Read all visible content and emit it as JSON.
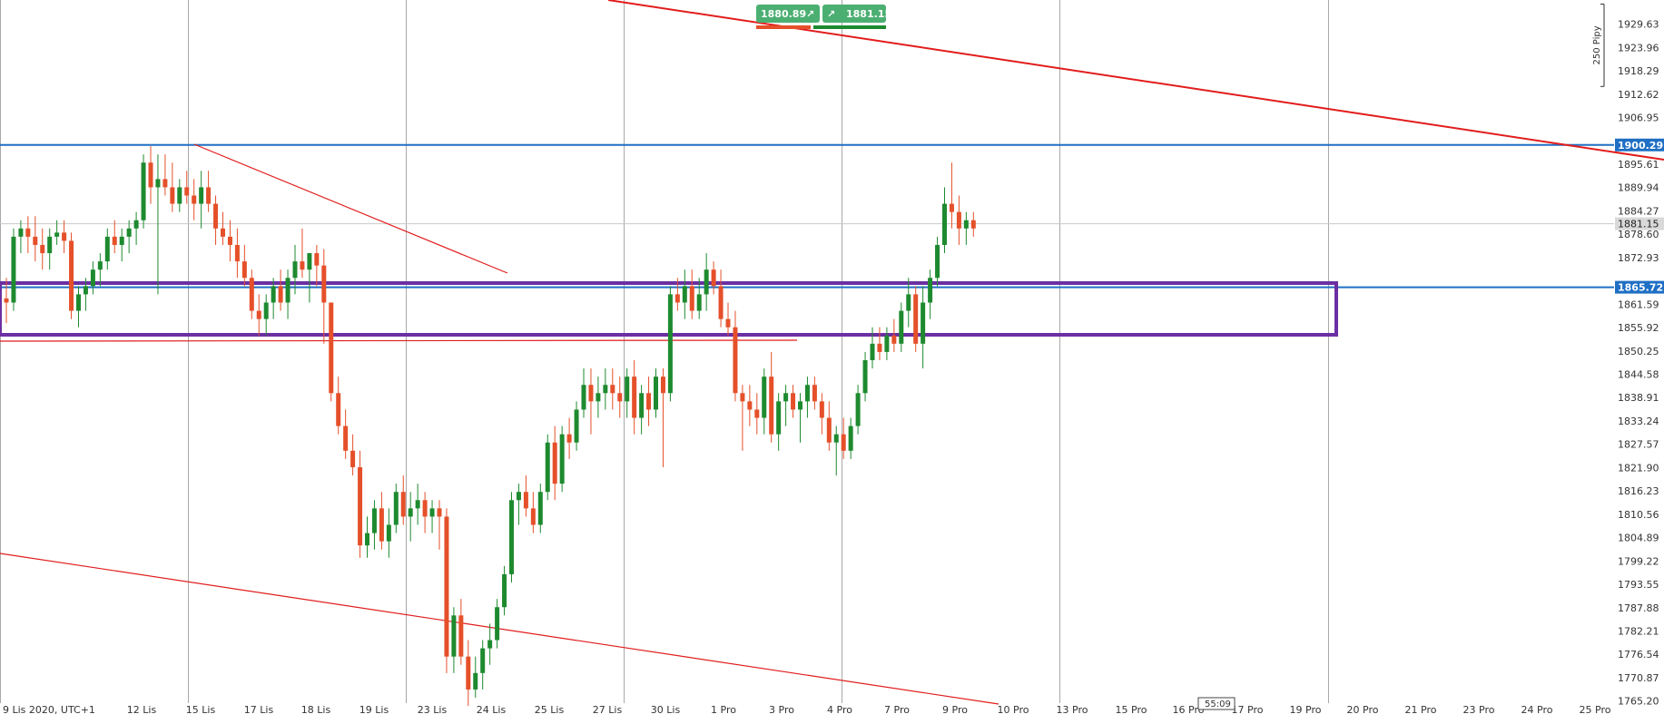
{
  "chart_data": {
    "type": "candlestick",
    "xlabel": "",
    "ylabel": "",
    "ylim": [
      1760.5,
      1935.5
    ],
    "price_ticks": [
      "1929.63",
      "1923.96",
      "1918.29",
      "1912.62",
      "1906.95",
      "1895.61",
      "1889.94",
      "1884.27",
      "1878.60",
      "1872.93",
      "1861.59",
      "1855.92",
      "1850.25",
      "1844.58",
      "1838.91",
      "1833.24",
      "1827.57",
      "1821.90",
      "1816.23",
      "1810.56",
      "1804.89",
      "1799.22",
      "1793.55",
      "1787.88",
      "1782.21",
      "1776.54",
      "1770.87",
      "1765.20"
    ],
    "date_ticks": [
      "9 Lis 2020, UTC+1",
      "12 Lis",
      "15 Lis",
      "17 Lis",
      "18 Lis",
      "19 Lis",
      "23 Lis",
      "24 Lis",
      "25 Lis",
      "27 Lis",
      "30 Lis",
      "1 Pro",
      "3 Pro",
      "4 Pro",
      "7 Pro",
      "9 Pro",
      "10 Pro",
      "13 Pro",
      "15 Pro",
      "16 Pro",
      "17 Pro",
      "19 Pro",
      "20 Pro",
      "21 Pro",
      "23 Pro",
      "24 Pro",
      "25 Pro"
    ],
    "level_labels": [
      {
        "text": "1900.29",
        "value": 1900.29
      },
      {
        "text": "1865.72",
        "value": 1865.72
      },
      {
        "text": "1881.15",
        "value": 1881.15
      }
    ],
    "range_ruler_label": "250 Pipy",
    "sell_price": "1880.89",
    "buy_price": "1881.15",
    "candle_timer": "55:09",
    "colors": {
      "up": "#1e8a2f",
      "down": "#e5502a",
      "level_line": "#1f6fc4",
      "trend_line": "#e21c1c",
      "zone": "#6b2fa3",
      "badge": "#4caf72"
    },
    "candles": [
      [
        1863.0,
        1868.0,
        1857.0,
        1862.0
      ],
      [
        1862.0,
        1880.0,
        1860.0,
        1878.0
      ],
      [
        1878.0,
        1882.0,
        1874.0,
        1880.0
      ],
      [
        1880.0,
        1883.0,
        1874.0,
        1878.0
      ],
      [
        1878.0,
        1883.0,
        1872.0,
        1876.0
      ],
      [
        1876.0,
        1880.0,
        1870.0,
        1874.0
      ],
      [
        1874.0,
        1880.0,
        1870.0,
        1878.0
      ],
      [
        1878.0,
        1882.0,
        1876.0,
        1879.0
      ],
      [
        1879.0,
        1882.0,
        1874.0,
        1877.0
      ],
      [
        1877.0,
        1879.0,
        1858.0,
        1860.0
      ],
      [
        1860.0,
        1866.0,
        1856.0,
        1864.0
      ],
      [
        1864.0,
        1868.0,
        1860.0,
        1866.0
      ],
      [
        1866.0,
        1872.0,
        1864.0,
        1870.0
      ],
      [
        1870.0,
        1874.0,
        1866.0,
        1872.0
      ],
      [
        1872.0,
        1880.0,
        1870.0,
        1878.0
      ],
      [
        1878.0,
        1882.0,
        1874.0,
        1876.0
      ],
      [
        1876.0,
        1880.0,
        1872.0,
        1878.0
      ],
      [
        1878.0,
        1882.0,
        1874.0,
        1880.0
      ],
      [
        1880.0,
        1884.0,
        1876.0,
        1882.0
      ],
      [
        1882.0,
        1898.0,
        1880.0,
        1896.0
      ],
      [
        1896.0,
        1900.0,
        1886.0,
        1890.0
      ],
      [
        1890.0,
        1898.0,
        1864.0,
        1892.0
      ],
      [
        1892.0,
        1898.0,
        1888.0,
        1890.0
      ],
      [
        1890.0,
        1896.0,
        1884.0,
        1886.0
      ],
      [
        1886.0,
        1892.0,
        1884.0,
        1890.0
      ],
      [
        1890.0,
        1894.0,
        1886.0,
        1888.0
      ],
      [
        1888.0,
        1892.0,
        1882.0,
        1886.0
      ],
      [
        1886.0,
        1894.0,
        1880.0,
        1890.0
      ],
      [
        1890.0,
        1894.0,
        1884.0,
        1886.0
      ],
      [
        1886.0,
        1888.0,
        1876.0,
        1880.0
      ],
      [
        1880.0,
        1884.0,
        1876.0,
        1878.0
      ],
      [
        1878.0,
        1882.0,
        1872.0,
        1876.0
      ],
      [
        1876.0,
        1880.0,
        1868.0,
        1872.0
      ],
      [
        1872.0,
        1876.0,
        1866.0,
        1868.0
      ],
      [
        1868.0,
        1870.0,
        1858.0,
        1860.0
      ],
      [
        1860.0,
        1864.0,
        1854.0,
        1858.0
      ],
      [
        1858.0,
        1864.0,
        1854.0,
        1862.0
      ],
      [
        1862.0,
        1868.0,
        1858.0,
        1866.0
      ],
      [
        1866.0,
        1870.0,
        1860.0,
        1862.0
      ],
      [
        1862.0,
        1870.0,
        1858.0,
        1868.0
      ],
      [
        1868.0,
        1876.0,
        1864.0,
        1872.0
      ],
      [
        1872.0,
        1880.0,
        1868.0,
        1870.0
      ],
      [
        1870.0,
        1874.0,
        1862.0,
        1874.0
      ],
      [
        1874.0,
        1876.0,
        1866.0,
        1871.0
      ],
      [
        1871.0,
        1875.0,
        1852.0,
        1862.0
      ],
      [
        1862.0,
        1862.0,
        1838.0,
        1840.0
      ],
      [
        1840.0,
        1844.0,
        1830.0,
        1832.0
      ],
      [
        1832.0,
        1836.0,
        1824.0,
        1826.0
      ],
      [
        1826.0,
        1830.0,
        1820.0,
        1822.0
      ],
      [
        1822.0,
        1826.0,
        1800.0,
        1803.0
      ],
      [
        1803.0,
        1810.0,
        1800.0,
        1806.0
      ],
      [
        1806.0,
        1814.0,
        1802.0,
        1812.0
      ],
      [
        1812.0,
        1816.0,
        1802.0,
        1804.0
      ],
      [
        1804.0,
        1812.0,
        1800.0,
        1808.0
      ],
      [
        1808.0,
        1818.0,
        1806.0,
        1816.0
      ],
      [
        1816.0,
        1820.0,
        1808.0,
        1810.0
      ],
      [
        1810.0,
        1816.0,
        1804.0,
        1812.0
      ],
      [
        1812.0,
        1818.0,
        1808.0,
        1814.0
      ],
      [
        1814.0,
        1816.0,
        1806.0,
        1810.0
      ],
      [
        1810.0,
        1814.0,
        1806.0,
        1812.0
      ],
      [
        1812.0,
        1814.0,
        1802.0,
        1810.0
      ],
      [
        1810.0,
        1812.0,
        1772.0,
        1776.0
      ],
      [
        1776.0,
        1788.0,
        1772.0,
        1786.0
      ],
      [
        1786.0,
        1790.0,
        1774.0,
        1776.0
      ],
      [
        1776.0,
        1780.0,
        1764.0,
        1768.0
      ],
      [
        1768.0,
        1776.0,
        1766.0,
        1772.0
      ],
      [
        1772.0,
        1780.0,
        1768.0,
        1778.0
      ],
      [
        1778.0,
        1784.0,
        1774.0,
        1780.0
      ],
      [
        1780.0,
        1790.0,
        1778.0,
        1788.0
      ],
      [
        1788.0,
        1798.0,
        1786.0,
        1796.0
      ],
      [
        1796.0,
        1816.0,
        1794.0,
        1814.0
      ],
      [
        1814.0,
        1818.0,
        1808.0,
        1816.0
      ],
      [
        1816.0,
        1820.0,
        1810.0,
        1812.0
      ],
      [
        1812.0,
        1816.0,
        1806.0,
        1808.0
      ],
      [
        1808.0,
        1818.0,
        1806.0,
        1816.0
      ],
      [
        1816.0,
        1830.0,
        1814.0,
        1828.0
      ],
      [
        1828.0,
        1832.0,
        1814.0,
        1818.0
      ],
      [
        1818.0,
        1832.0,
        1816.0,
        1830.0
      ],
      [
        1830.0,
        1834.0,
        1824.0,
        1828.0
      ],
      [
        1828.0,
        1838.0,
        1826.0,
        1836.0
      ],
      [
        1836.0,
        1846.0,
        1834.0,
        1842.0
      ],
      [
        1842.0,
        1846.0,
        1830.0,
        1838.0
      ],
      [
        1838.0,
        1844.0,
        1834.0,
        1840.0
      ],
      [
        1840.0,
        1846.0,
        1836.0,
        1842.0
      ],
      [
        1842.0,
        1846.0,
        1836.0,
        1840.0
      ],
      [
        1840.0,
        1844.0,
        1834.0,
        1838.0
      ],
      [
        1838.0,
        1846.0,
        1834.0,
        1844.0
      ],
      [
        1844.0,
        1848.0,
        1830.0,
        1834.0
      ],
      [
        1834.0,
        1842.0,
        1830.0,
        1840.0
      ],
      [
        1840.0,
        1844.0,
        1832.0,
        1836.0
      ],
      [
        1836.0,
        1846.0,
        1834.0,
        1844.0
      ],
      [
        1844.0,
        1846.0,
        1822.0,
        1840.0
      ],
      [
        1840.0,
        1866.0,
        1838.0,
        1864.0
      ],
      [
        1864.0,
        1868.0,
        1860.0,
        1862.0
      ],
      [
        1862.0,
        1870.0,
        1858.0,
        1866.0
      ],
      [
        1866.0,
        1870.0,
        1858.0,
        1860.0
      ],
      [
        1860.0,
        1868.0,
        1858.0,
        1864.0
      ],
      [
        1864.0,
        1874.0,
        1860.0,
        1870.0
      ],
      [
        1870.0,
        1872.0,
        1864.0,
        1866.0
      ],
      [
        1866.0,
        1870.0,
        1856.0,
        1858.0
      ],
      [
        1858.0,
        1862.0,
        1854.0,
        1856.0
      ],
      [
        1856.0,
        1860.0,
        1838.0,
        1840.0
      ],
      [
        1840.0,
        1842.0,
        1826.0,
        1838.0
      ],
      [
        1838.0,
        1842.0,
        1832.0,
        1836.0
      ],
      [
        1836.0,
        1840.0,
        1830.0,
        1834.0
      ],
      [
        1834.0,
        1846.0,
        1830.0,
        1844.0
      ],
      [
        1844.0,
        1850.0,
        1828.0,
        1830.0
      ],
      [
        1830.0,
        1840.0,
        1826.0,
        1838.0
      ],
      [
        1838.0,
        1842.0,
        1832.0,
        1840.0
      ],
      [
        1840.0,
        1842.0,
        1834.0,
        1836.0
      ],
      [
        1836.0,
        1840.0,
        1828.0,
        1838.0
      ],
      [
        1838.0,
        1844.0,
        1834.0,
        1842.0
      ],
      [
        1842.0,
        1844.0,
        1836.0,
        1838.0
      ],
      [
        1838.0,
        1840.0,
        1830.0,
        1834.0
      ],
      [
        1834.0,
        1838.0,
        1826.0,
        1828.0
      ],
      [
        1828.0,
        1832.0,
        1820.0,
        1830.0
      ],
      [
        1830.0,
        1834.0,
        1824.0,
        1826.0
      ],
      [
        1826.0,
        1834.0,
        1824.0,
        1832.0
      ],
      [
        1832.0,
        1842.0,
        1830.0,
        1840.0
      ],
      [
        1840.0,
        1850.0,
        1838.0,
        1848.0
      ],
      [
        1848.0,
        1856.0,
        1846.0,
        1852.0
      ],
      [
        1852.0,
        1856.0,
        1848.0,
        1850.0
      ],
      [
        1850.0,
        1856.0,
        1848.0,
        1854.0
      ],
      [
        1854.0,
        1858.0,
        1850.0,
        1852.0
      ],
      [
        1852.0,
        1862.0,
        1850.0,
        1860.0
      ],
      [
        1860.0,
        1868.0,
        1856.0,
        1864.0
      ],
      [
        1864.0,
        1866.0,
        1850.0,
        1852.0
      ],
      [
        1852.0,
        1866.0,
        1846.0,
        1862.0
      ],
      [
        1862.0,
        1870.0,
        1858.0,
        1868.0
      ],
      [
        1868.0,
        1878.0,
        1866.0,
        1876.0
      ],
      [
        1876.0,
        1890.0,
        1874.0,
        1886.0
      ],
      [
        1886.0,
        1896.0,
        1880.0,
        1884.0
      ],
      [
        1884.0,
        1888.0,
        1876.0,
        1880.0
      ],
      [
        1880.0,
        1884.0,
        1876.0,
        1882.0
      ],
      [
        1882.0,
        1884.0,
        1878.0,
        1880.0
      ]
    ]
  }
}
